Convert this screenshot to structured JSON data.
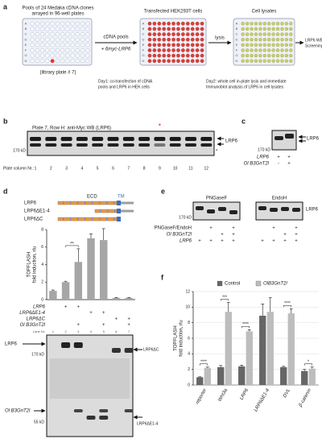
{
  "panel_labels": [
    "a",
    "b",
    "c",
    "d",
    "e",
    "f"
  ],
  "a": {
    "plate1_title_lines": [
      "Pools of 24 Medaka cDNA clones",
      "arrayed in 96-well plates"
    ],
    "plate1_caption": "(library plate # 7)",
    "plate2_title": "Transfected HEK293T cells",
    "plate3_title": "Cell lysates",
    "plate_rows": [
      "A",
      "B",
      "C",
      "D",
      "E",
      "F",
      "G",
      "H"
    ],
    "arrow1_top": "cDNA pools",
    "arrow1_bottom": "+ 6myc-LRP6",
    "arrow2": "lysis",
    "result_lines": [
      "LRP6 WB",
      "Screening"
    ],
    "day1_lines": [
      "Day1: co-transfection of cDNA",
      "pools and LRP6 in HEK cells"
    ],
    "day2_lines": [
      "Day2: whole cell in-plate lysis and immediate",
      "Immunoblot analysis of LRP6 in cell lysates"
    ]
  },
  "b": {
    "title": "Plate 7, Row H: anti-Myc WB (LRP6)",
    "hit_marker": "*",
    "band_label": "LRP6",
    "marker": "170 kD",
    "nonspecific": "*",
    "columns_label": "Plate column Nr.:",
    "columns": [
      1,
      2,
      3,
      4,
      5,
      6,
      7,
      8,
      9,
      10,
      11,
      12
    ]
  },
  "c": {
    "band_label": "LRP6",
    "marker": "170 kD",
    "rows": [
      {
        "label": "LRP6",
        "signs": [
          "+",
          "+"
        ]
      },
      {
        "label": "Ol B3GnT2l",
        "signs": [
          "-",
          "+"
        ]
      }
    ]
  },
  "d": {
    "domains": {
      "ecd": "ECD",
      "tm": "TM"
    },
    "constructs": [
      "LRP6",
      "LRP6ΔE1-4",
      "LRP6ΔC"
    ],
    "rows": [
      {
        "label": "LRP6",
        "signs": [
          null,
          "+",
          "+",
          null,
          null,
          null,
          null
        ]
      },
      {
        "label": "LRP6ΔE1-4",
        "signs": [
          null,
          null,
          null,
          "+",
          "+",
          null,
          null
        ]
      },
      {
        "label": "LRP6ΔC",
        "signs": [
          null,
          null,
          null,
          null,
          null,
          "+",
          "+"
        ]
      },
      {
        "label": "Ol B3GnT2l",
        "signs": [
          null,
          null,
          "+",
          null,
          "+",
          null,
          "+"
        ]
      }
    ],
    "lane_label": "Lane Nr.",
    "lanes": [
      1,
      2,
      3,
      4,
      5,
      6,
      7
    ],
    "blot_labels": {
      "lrp6": "LRP6",
      "marker_top": "170 kD",
      "dc": "LRP6ΔC",
      "b3": "Ol B3GnT2l",
      "marker_bottom": "55 kD",
      "de": "LRP6ΔE1-4"
    }
  },
  "e": {
    "titles": [
      "PNGaseF",
      "EndoH"
    ],
    "band_label": "LRP6",
    "marker": "170 kD",
    "rows": [
      {
        "label": "PNGaseF/EndoH",
        "signs": [
          null,
          "+",
          null,
          "+",
          null,
          "+",
          null,
          "+"
        ]
      },
      {
        "label": "Ol B3GnT2l",
        "signs": [
          null,
          null,
          "+",
          "+",
          null,
          null,
          "+",
          "+"
        ]
      },
      {
        "label": "LRP6",
        "signs": [
          "+",
          "+",
          "+",
          "+",
          "+",
          "+",
          "+",
          "+"
        ]
      }
    ]
  },
  "chart_data": [
    {
      "type": "bar",
      "ylabel_lines": [
        "TOPFLASH",
        "fold induction, rlu"
      ],
      "values": [
        1.0,
        2.0,
        4.3,
        7.0,
        6.8,
        0.2,
        0.2
      ],
      "errors": [
        0.1,
        0.1,
        1.5,
        0.5,
        1.3,
        0.05,
        0.05
      ],
      "color": "#a6a6a6",
      "ylim": [
        0,
        8
      ],
      "yticks": [
        0,
        2,
        4,
        6,
        8
      ],
      "annotations": [
        null,
        null,
        "**",
        null,
        null,
        null,
        null
      ]
    },
    {
      "type": "grouped_bar",
      "ylabel_lines": [
        "TOPFLASH",
        "fold induction, rlu"
      ],
      "categories": [
        "reporter",
        "Wnt3a",
        "LRP6",
        "LRP6ΔE1-4",
        "DVL",
        "β-catenin"
      ],
      "series": [
        {
          "name": "Control",
          "color": "#666666",
          "values": [
            1.0,
            2.3,
            2.4,
            8.9,
            2.3,
            1.8
          ],
          "errors": [
            0.05,
            0.2,
            0.15,
            1.5,
            0.1,
            0.2
          ]
        },
        {
          "name": "OlB3GnT2l",
          "color": "#bdbdbd",
          "values": [
            2.2,
            9.4,
            6.9,
            9.4,
            9.2,
            2.1
          ],
          "errors": [
            0.1,
            1.2,
            0.2,
            1.8,
            0.6,
            0.2
          ]
        }
      ],
      "ylim": [
        0,
        12
      ],
      "yticks": [
        0,
        2,
        4,
        6,
        8,
        10,
        12
      ],
      "grid": true,
      "legend": "top",
      "annotations": [
        "****",
        "***",
        "****",
        null,
        "****",
        "*"
      ]
    }
  ]
}
